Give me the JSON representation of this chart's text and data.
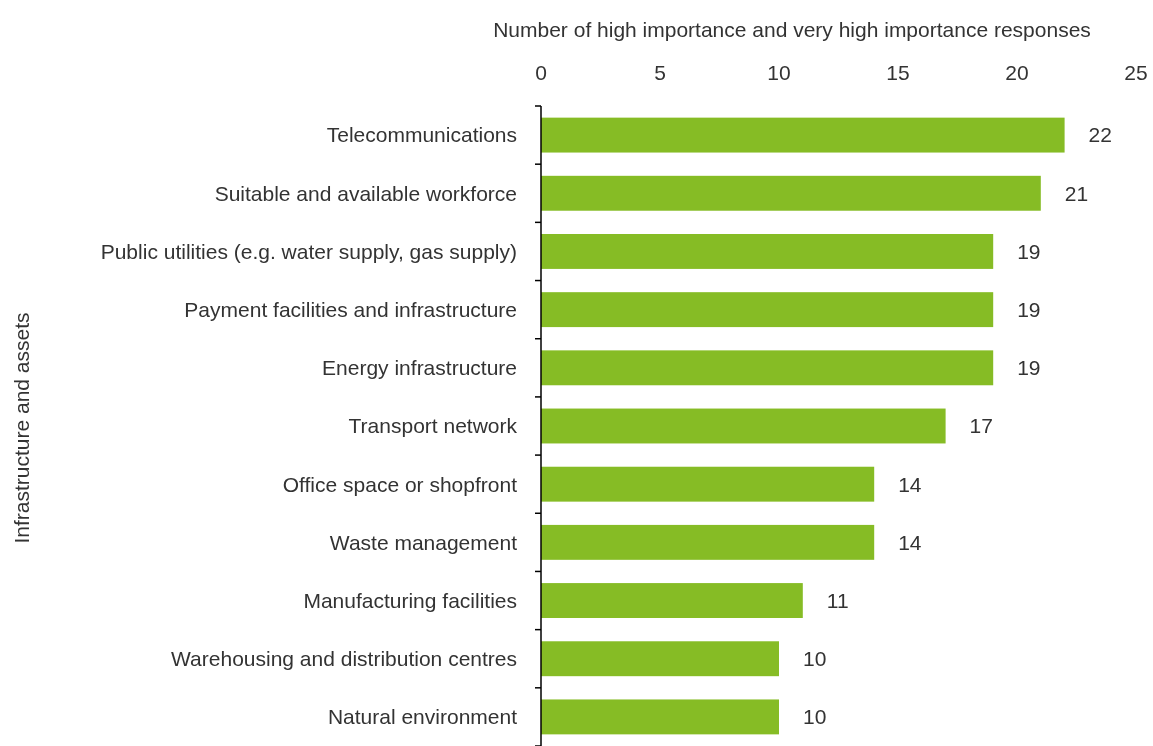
{
  "chart_data": {
    "type": "bar",
    "orientation": "horizontal",
    "xlabel": "Number of high importance and very high importance responses",
    "ylabel": "Infrastructure and assets",
    "categories": [
      "Telecommunications",
      "Suitable and available workforce",
      "Public utilities (e.g. water supply, gas supply)",
      "Payment facilities and infrastructure",
      "Energy infrastructure",
      "Transport network",
      "Office space or shopfront",
      "Waste management",
      "Manufacturing facilities",
      "Warehousing and distribution centres",
      "Natural environment"
    ],
    "values": [
      22,
      21,
      19,
      19,
      19,
      17,
      14,
      14,
      11,
      10,
      10
    ],
    "color": "#86bc25",
    "xlim": [
      0,
      25
    ],
    "xticks": [
      0,
      5,
      10,
      15,
      20,
      25
    ],
    "grid": false,
    "data_labels": true
  }
}
